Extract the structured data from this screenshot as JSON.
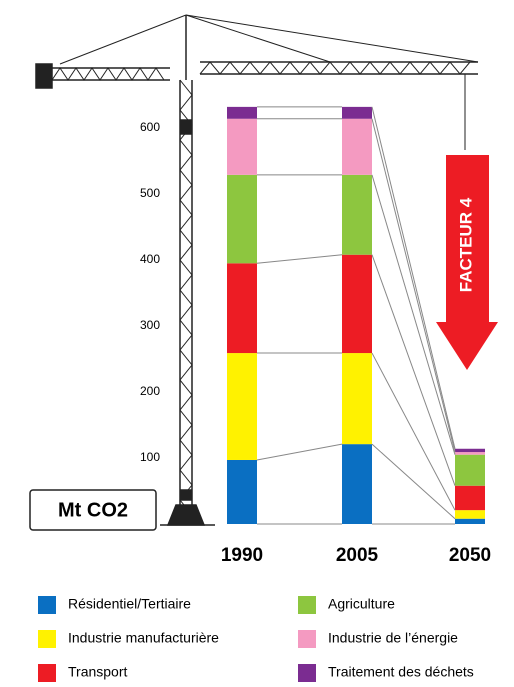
{
  "chart_data": {
    "type": "stacked-bar",
    "unit_label": "Mt CO2",
    "annotation": "FACTEUR 4",
    "categories": [
      "1990",
      "2005",
      "2050"
    ],
    "series": [
      {
        "name": "Résidentiel/Tertiaire",
        "color": "#0a6fc2",
        "values": [
          97,
          121,
          8
        ]
      },
      {
        "name": "Industrie manufacturière",
        "color": "#fff200",
        "values": [
          162,
          138,
          13
        ]
      },
      {
        "name": "Transport",
        "color": "#ed1c24",
        "values": [
          136,
          149,
          37
        ]
      },
      {
        "name": "Agriculture",
        "color": "#8dc63f",
        "values": [
          134,
          121,
          47
        ]
      },
      {
        "name": "Industrie de l’énergie",
        "color": "#f49ac1",
        "values": [
          85,
          85,
          4
        ]
      },
      {
        "name": "Traitement des déchets",
        "color": "#7b2c91",
        "values": [
          18,
          18,
          5
        ]
      }
    ],
    "ylim": [
      0,
      650
    ],
    "yticks": [
      100,
      200,
      300,
      400,
      500,
      600
    ],
    "grid": false
  }
}
